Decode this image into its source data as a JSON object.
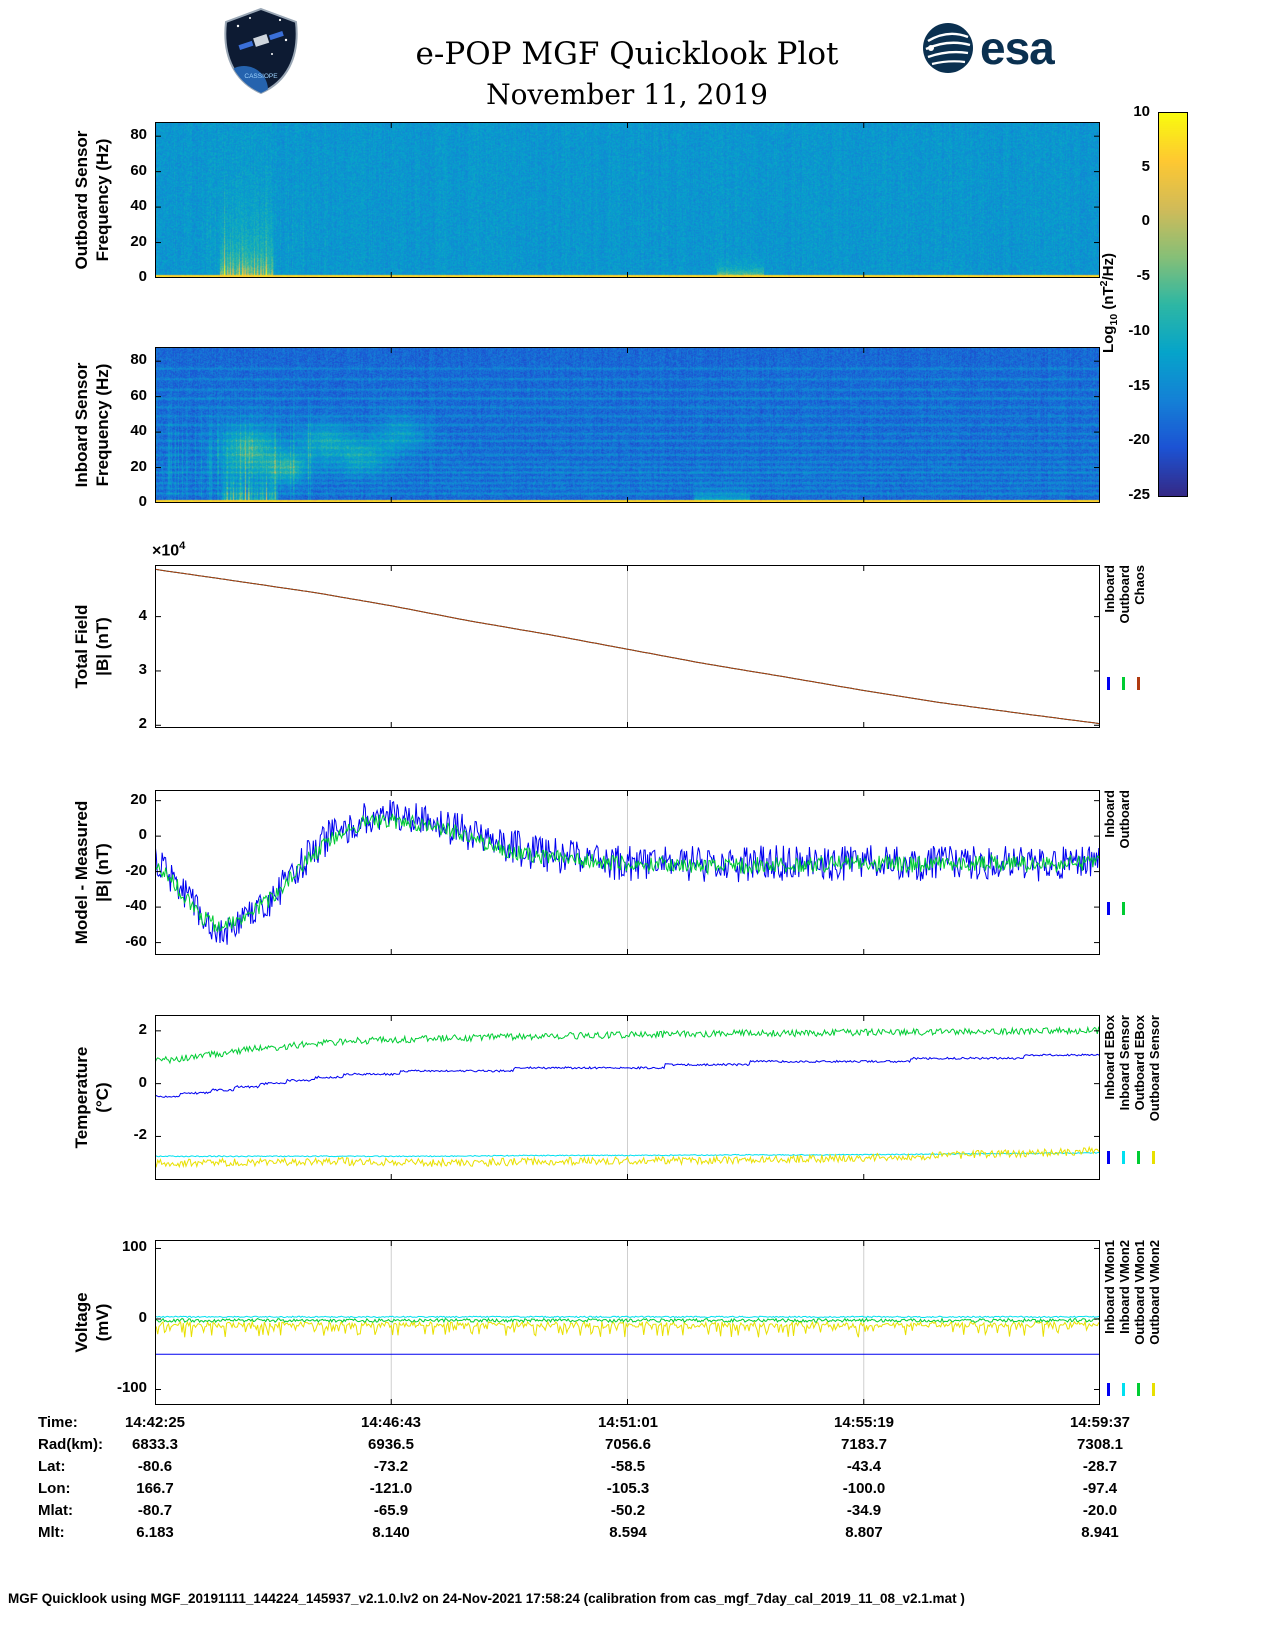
{
  "header": {
    "title": "e-POP MGF Quicklook Plot",
    "date": "November 11, 2019",
    "esa_text": "esa",
    "mission_patch_text": "CASSIOPE"
  },
  "colorbar": {
    "ticks": [
      10,
      5,
      0,
      -5,
      -10,
      -15,
      -20,
      -25
    ],
    "min": -25,
    "max": 10,
    "label_parts": {
      "pre": "Log",
      "sub": "10",
      "mid": " (nT",
      "sup": "2",
      "post": "/Hz)"
    }
  },
  "misc": {
    "scale_prefix": "×10",
    "scale_exp": "4"
  },
  "chart_data": [
    {
      "id": "outboard-spectrogram",
      "type": "heatmap",
      "ylabel": "Outboard Sensor\nFrequency (Hz)",
      "yticks": [
        0,
        20,
        40,
        60,
        80
      ],
      "ylim": [
        0,
        88
      ],
      "xgrid": [],
      "value_range_log10": [
        -25,
        10
      ],
      "spectro": {
        "seed": 7,
        "bg": -13.5,
        "bgNoise": 2.2,
        "fmax": 88,
        "bottomBand": {
          "fmax": 1.6,
          "level": 5,
          "var": 3
        },
        "burst": {
          "x0": 0.068,
          "x1": 0.125,
          "ampMin": 8,
          "ampMax": 24,
          "fscale": 7,
          "fscale2": 26
        },
        "stripes": {
          "x0": 0.05,
          "x1": 0.16,
          "amp": 2.5
        },
        "bump": {
          "x0": 0.595,
          "x1": 0.645,
          "amp": 15,
          "fscale": 3
        }
      }
    },
    {
      "id": "inboard-spectrogram",
      "type": "heatmap",
      "ylabel": "Inboard Sensor\nFrequency (Hz)",
      "yticks": [
        0,
        20,
        40,
        60,
        80
      ],
      "ylim": [
        0,
        88
      ],
      "xgrid": [],
      "value_range_log10": [
        -25,
        10
      ],
      "spectro": {
        "seed": 11,
        "bg": -18.5,
        "bgNoise": 2.4,
        "fmax": 88,
        "bottomBand": {
          "fmax": 1.6,
          "level": 5,
          "var": 3
        },
        "burst": {
          "x0": 0.07,
          "x1": 0.13,
          "ampMin": 8,
          "ampMax": 22,
          "fscale": 6,
          "fscale2": 20
        },
        "vstreaks": {
          "x1": 0.17,
          "amp": 6
        },
        "bump": {
          "x0": 0.57,
          "x1": 0.63,
          "amp": 13,
          "fscale": 3
        },
        "hlines": [
          {
            "f": 5,
            "a": 4
          },
          {
            "f": 8,
            "a": 3
          },
          {
            "f": 11,
            "a": 3.5
          },
          {
            "f": 14,
            "a": 3
          },
          {
            "f": 17,
            "a": 4.5
          },
          {
            "f": 20,
            "a": 3.5
          },
          {
            "f": 23,
            "a": 3
          },
          {
            "f": 27,
            "a": 3.5
          },
          {
            "f": 31,
            "a": 3
          },
          {
            "f": 35,
            "a": 3.5
          },
          {
            "f": 39,
            "a": 3
          },
          {
            "f": 44,
            "a": 3.5
          },
          {
            "f": 49,
            "a": 3
          },
          {
            "f": 54,
            "a": 3
          },
          {
            "f": 59,
            "a": 3.5
          },
          {
            "f": 64,
            "a": 3
          },
          {
            "f": 70,
            "a": 3
          },
          {
            "f": 76,
            "a": 3
          }
        ],
        "blobs": [
          {
            "x": 0.1,
            "f": 30,
            "a": 9,
            "sx": 0.02,
            "sf": 9
          },
          {
            "x": 0.14,
            "f": 20,
            "a": 8,
            "sx": 0.015,
            "sf": 6
          },
          {
            "x": 0.18,
            "f": 34,
            "a": 7,
            "sx": 0.02,
            "sf": 8
          },
          {
            "x": 0.22,
            "f": 26,
            "a": 6,
            "sx": 0.018,
            "sf": 7
          },
          {
            "x": 0.26,
            "f": 38,
            "a": 5,
            "sx": 0.02,
            "sf": 8
          }
        ]
      }
    },
    {
      "id": "total-field",
      "type": "line",
      "ylabel": "Total Field\n|B| (nT)",
      "yticks": [
        2,
        3,
        4
      ],
      "ylim": [
        1.95,
        4.95
      ],
      "y_scale": "×10⁴",
      "xgrid": [
        0.5
      ],
      "series": [
        {
          "name": "Inboard",
          "color": "#0000f0",
          "steps": 300,
          "noise": 0,
          "x": [
            0,
            0.08,
            0.17,
            0.25,
            0.33,
            0.42,
            0.5,
            0.58,
            0.67,
            0.75,
            0.83,
            0.92,
            1
          ],
          "values": [
            4.87,
            4.67,
            4.44,
            4.2,
            3.93,
            3.66,
            3.4,
            3.14,
            2.88,
            2.64,
            2.42,
            2.21,
            2.03
          ]
        },
        {
          "name": "Outboard",
          "color": "#00cc33",
          "steps": 300,
          "noise": 0,
          "x": [
            0,
            0.08,
            0.17,
            0.25,
            0.33,
            0.42,
            0.5,
            0.58,
            0.67,
            0.75,
            0.83,
            0.92,
            1
          ],
          "values": [
            4.87,
            4.67,
            4.44,
            4.2,
            3.93,
            3.66,
            3.4,
            3.14,
            2.88,
            2.64,
            2.42,
            2.21,
            2.03
          ]
        },
        {
          "name": "Chaos",
          "color": "#b03a10",
          "steps": 300,
          "noise": 0,
          "x": [
            0,
            0.08,
            0.17,
            0.25,
            0.33,
            0.42,
            0.5,
            0.58,
            0.67,
            0.75,
            0.83,
            0.92,
            1
          ],
          "values": [
            4.87,
            4.67,
            4.44,
            4.2,
            3.93,
            3.66,
            3.4,
            3.14,
            2.88,
            2.64,
            2.42,
            2.21,
            2.03
          ]
        }
      ],
      "legend": [
        {
          "label": "Inboard",
          "color": "#0000f0"
        },
        {
          "label": "Outboard",
          "color": "#00cc33"
        },
        {
          "label": "Chaos",
          "color": "#b03a10"
        }
      ]
    },
    {
      "id": "model-minus-measured",
      "type": "line",
      "ylabel": "Model - Measured\n|B| (nT)",
      "yticks": [
        20,
        0,
        -20,
        -40,
        -60
      ],
      "ylim": [
        -67,
        26
      ],
      "xgrid": [
        0.5
      ],
      "series": [
        {
          "name": "Inboard",
          "color": "#0000f0",
          "steps": 800,
          "noise": 10,
          "x": [
            0,
            0.02,
            0.045,
            0.07,
            0.09,
            0.12,
            0.15,
            0.18,
            0.21,
            0.24,
            0.27,
            0.3,
            0.33,
            0.36,
            0.4,
            0.44,
            0.48,
            0.52,
            0.56,
            0.6,
            0.65,
            0.7,
            0.75,
            0.8,
            0.85,
            0.9,
            0.95,
            1
          ],
          "values": [
            -12,
            -24,
            -43,
            -53,
            -50,
            -37,
            -18,
            -2,
            8,
            11,
            10,
            7,
            2,
            -4,
            -9,
            -12,
            -15,
            -16,
            -15,
            -17,
            -15,
            -16,
            -15,
            -16,
            -15,
            -15,
            -16,
            -15
          ]
        },
        {
          "name": "Outboard",
          "color": "#00cc33",
          "steps": 800,
          "noise": 4.5,
          "x": [
            0,
            0.02,
            0.045,
            0.07,
            0.09,
            0.12,
            0.15,
            0.18,
            0.21,
            0.24,
            0.27,
            0.3,
            0.33,
            0.36,
            0.4,
            0.44,
            0.48,
            0.52,
            0.56,
            0.6,
            0.65,
            0.7,
            0.75,
            0.8,
            0.85,
            0.9,
            0.95,
            1
          ],
          "values": [
            -14,
            -26,
            -44,
            -52,
            -48,
            -36,
            -19,
            -4,
            6,
            9,
            8,
            5,
            0,
            -6,
            -11,
            -13,
            -15,
            -16,
            -16,
            -17,
            -16,
            -16,
            -15,
            -16,
            -15,
            -15,
            -16,
            -15
          ]
        }
      ],
      "legend": [
        {
          "label": "Inboard",
          "color": "#0000f0"
        },
        {
          "label": "Outboard",
          "color": "#00cc33"
        }
      ]
    },
    {
      "id": "temperature",
      "type": "line",
      "ylabel": "Temperature\n(°C)",
      "yticks": [
        2,
        0,
        -2
      ],
      "ylim": [
        -3.65,
        2.6
      ],
      "xgrid": [
        0.5
      ],
      "series": [
        {
          "name": "Inboard Sensor",
          "color": "#00e0f0",
          "steps": 700,
          "noise": 0.02,
          "x": [
            0,
            0.05,
            0.1,
            0.2,
            0.3,
            0.4,
            0.5,
            0.6,
            0.7,
            0.8,
            0.9,
            1
          ],
          "values": [
            -2.75,
            -2.75,
            -2.75,
            -2.75,
            -2.75,
            -2.72,
            -2.72,
            -2.7,
            -2.7,
            -2.68,
            -2.65,
            -2.62
          ]
        },
        {
          "name": "Outboard Sensor",
          "color": "#e8e000",
          "steps": 700,
          "noise": 0.15,
          "x": [
            0,
            0.05,
            0.1,
            0.2,
            0.3,
            0.4,
            0.5,
            0.6,
            0.7,
            0.8,
            0.9,
            1
          ],
          "values": [
            -3.0,
            -3.0,
            -2.97,
            -2.95,
            -3.0,
            -2.95,
            -2.92,
            -2.9,
            -2.85,
            -2.75,
            -2.65,
            -2.55
          ]
        },
        {
          "name": "Inboard EBox",
          "color": "#0000f0",
          "steps": 700,
          "noise": 0.04,
          "quantize": 0.12,
          "x": [
            0,
            0.05,
            0.1,
            0.2,
            0.3,
            0.4,
            0.5,
            0.6,
            0.7,
            0.8,
            0.9,
            1
          ],
          "values": [
            -0.5,
            -0.35,
            -0.1,
            0.3,
            0.5,
            0.55,
            0.6,
            0.75,
            0.85,
            0.9,
            1.0,
            1.1
          ]
        },
        {
          "name": "Outboard EBox",
          "color": "#00cc33",
          "steps": 700,
          "noise": 0.13,
          "x": [
            0,
            0.05,
            0.1,
            0.2,
            0.3,
            0.4,
            0.5,
            0.6,
            0.7,
            0.8,
            0.9,
            1
          ],
          "values": [
            0.85,
            1.05,
            1.3,
            1.6,
            1.72,
            1.78,
            1.85,
            1.9,
            1.92,
            1.95,
            1.98,
            2.0
          ]
        }
      ],
      "legend": [
        {
          "label": "Inboard EBox",
          "color": "#0000f0"
        },
        {
          "label": "Inboard Sensor",
          "color": "#00e0f0"
        },
        {
          "label": "Outboard EBox",
          "color": "#00cc33"
        },
        {
          "label": "Outboard Sensor",
          "color": "#e8e000"
        }
      ]
    },
    {
      "id": "voltage",
      "type": "line",
      "ylabel": "Voltage\n(mV)",
      "yticks": [
        100,
        0,
        -100
      ],
      "ylim": [
        -122,
        112
      ],
      "xgrid": [
        0.25,
        0.5,
        0.75
      ],
      "series": [
        {
          "name": "Outboard VMon2",
          "color": "#e8e000",
          "steps": 700,
          "noise": 4,
          "spiky": {
            "prob": 0.22,
            "amp": 18
          },
          "x": [
            0,
            1
          ],
          "values": [
            -8,
            -8
          ]
        },
        {
          "name": "Outboard VMon1",
          "color": "#00cc33",
          "steps": 700,
          "noise": 2.5,
          "x": [
            0,
            1
          ],
          "values": [
            -2,
            -2
          ]
        },
        {
          "name": "Inboard VMon2",
          "color": "#00e0f0",
          "steps": 700,
          "noise": 1,
          "x": [
            0,
            1
          ],
          "values": [
            3,
            3
          ]
        },
        {
          "name": "Inboard VMon1",
          "color": "#0000f0",
          "steps": 300,
          "noise": 0,
          "x": [
            0,
            1
          ],
          "values": [
            -50,
            -50
          ]
        }
      ],
      "legend": [
        {
          "label": "Inboard VMon1",
          "color": "#0000f0"
        },
        {
          "label": "Inboard VMon2",
          "color": "#00e0f0"
        },
        {
          "label": "Outboard VMon1",
          "color": "#00cc33"
        },
        {
          "label": "Outboard VMon2",
          "color": "#e8e000"
        }
      ]
    }
  ],
  "bottom_table": {
    "rows": [
      {
        "label": "Time:",
        "values": [
          "14:42:25",
          "14:46:43",
          "14:51:01",
          "14:55:19",
          "14:59:37"
        ]
      },
      {
        "label": "Rad(km):",
        "values": [
          "6833.3",
          "6936.5",
          "7056.6",
          "7183.7",
          "7308.1"
        ]
      },
      {
        "label": "Lat:",
        "values": [
          "-80.6",
          "-73.2",
          "-58.5",
          "-43.4",
          "-28.7"
        ]
      },
      {
        "label": "Lon:",
        "values": [
          "166.7",
          "-121.0",
          "-105.3",
          "-100.0",
          "-97.4"
        ]
      },
      {
        "label": "Mlat:",
        "values": [
          "-80.7",
          "-65.9",
          "-50.2",
          "-34.9",
          "-20.0"
        ]
      },
      {
        "label": "Mlt:",
        "values": [
          "6.183",
          "8.140",
          "8.594",
          "8.807",
          "8.941"
        ]
      }
    ]
  },
  "footer": "MGF Quicklook using MGF_20191111_144224_145937_v2.1.0.lv2 on 24-Nov-2021 17:58:24 (calibration from cas_mgf_7day_cal_2019_11_08_v2.1.mat )"
}
